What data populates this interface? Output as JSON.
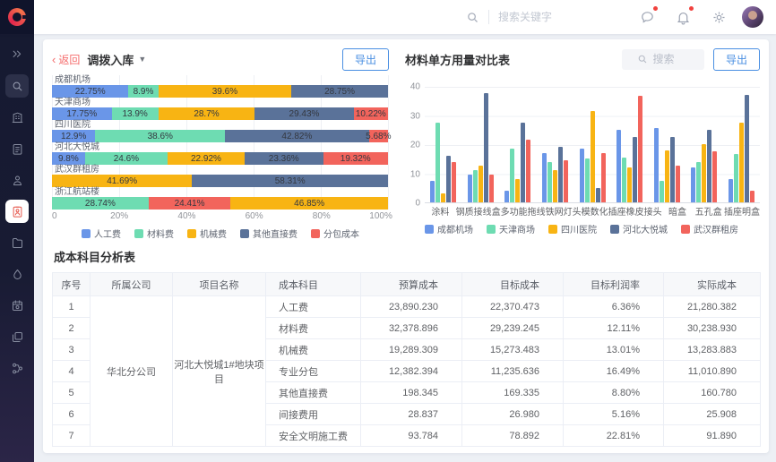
{
  "navbar": {
    "search_placeholder": "搜索关键字"
  },
  "sidebar": {
    "items": [
      {
        "icon": "chevrons-right-icon",
        "state": "plain"
      },
      {
        "icon": "search-icon",
        "state": "muted-box"
      },
      {
        "icon": "building-icon",
        "state": "plain"
      },
      {
        "icon": "clipboard-edit-icon",
        "state": "plain"
      },
      {
        "icon": "user-stamp-icon",
        "state": "plain"
      },
      {
        "icon": "clipboard-user-icon",
        "state": "active"
      },
      {
        "icon": "folder-icon",
        "state": "plain"
      },
      {
        "icon": "droplet-icon",
        "state": "plain"
      },
      {
        "icon": "calendar-gear-icon",
        "state": "plain"
      },
      {
        "icon": "layers-icon",
        "state": "plain"
      },
      {
        "icon": "flow-icon",
        "state": "plain"
      }
    ]
  },
  "left_panel": {
    "back_label": "返回",
    "title": "调拨入库",
    "export_label": "导出"
  },
  "right_panel": {
    "title": "材料单方用量对比表",
    "search_placeholder": "搜索",
    "export_label": "导出"
  },
  "colors": {
    "accent_blue": "#4A8FE2",
    "back_red": "#F56C6C",
    "sidebar_active_red": "#E5574C"
  },
  "chart_data": [
    {
      "type": "bar",
      "variant": "horizontal-stacked-percent",
      "xlim": [
        0,
        100
      ],
      "x_ticks": [
        "0",
        "20%",
        "40%",
        "60%",
        "80%",
        "100%"
      ],
      "legend": [
        {
          "name": "人工费",
          "color": "#6A96E8"
        },
        {
          "name": "材料费",
          "color": "#6EDCB2"
        },
        {
          "name": "机械费",
          "color": "#F8B413"
        },
        {
          "name": "其他直接费",
          "color": "#5A7299"
        },
        {
          "name": "分包成本",
          "color": "#F2645C"
        }
      ],
      "rows": [
        {
          "category": "成都机场",
          "segments": [
            {
              "series": "人工费",
              "value": 22.75
            },
            {
              "series": "材料费",
              "value": 8.9
            },
            {
              "series": "机械费",
              "value": 39.6
            },
            {
              "series": "其他直接费",
              "value": 28.75
            }
          ]
        },
        {
          "category": "天津商场",
          "segments": [
            {
              "series": "人工费",
              "value": 17.75
            },
            {
              "series": "材料费",
              "value": 13.9
            },
            {
              "series": "机械费",
              "value": 28.7
            },
            {
              "series": "其他直接费",
              "value": 29.43
            },
            {
              "series": "分包成本",
              "value": 10.22
            }
          ]
        },
        {
          "category": "四川医院",
          "segments": [
            {
              "series": "人工费",
              "value": 12.9
            },
            {
              "series": "材料费",
              "value": 38.6
            },
            {
              "series": "其他直接费",
              "value": 42.82
            },
            {
              "series": "分包成本",
              "value": 5.68
            }
          ]
        },
        {
          "category": "河北大悦城",
          "segments": [
            {
              "series": "人工费",
              "value": 9.8
            },
            {
              "series": "材料费",
              "value": 24.6
            },
            {
              "series": "机械费",
              "value": 22.92
            },
            {
              "series": "其他直接费",
              "value": 23.36
            },
            {
              "series": "分包成本",
              "value": 19.32
            }
          ]
        },
        {
          "category": "武汉群租房",
          "segments": [
            {
              "series": "机械费",
              "value": 41.69
            },
            {
              "series": "其他直接费",
              "value": 58.31
            }
          ]
        },
        {
          "category": "浙江航站楼",
          "segments": [
            {
              "series": "材料费",
              "value": 28.74
            },
            {
              "series": "分包成本",
              "value": 24.41
            },
            {
              "series": "机械费",
              "value": 46.85
            }
          ]
        }
      ]
    },
    {
      "type": "bar",
      "variant": "vertical-grouped",
      "title": "材料单方用量对比表",
      "ylim": [
        0,
        40
      ],
      "y_ticks": [
        0,
        10,
        20,
        30,
        40
      ],
      "categories": [
        "涂料",
        "钢质接线盒",
        "多功能拖线",
        "铁网灯头",
        "模数化插座",
        "橡皮接头",
        "暗盒",
        "五孔盒",
        "插座明盒"
      ],
      "series": [
        {
          "name": "成都机场",
          "color": "#6A96E8",
          "values": [
            7.5,
            9.5,
            4,
            17,
            18.5,
            25,
            25.5,
            12,
            8
          ]
        },
        {
          "name": "天津商场",
          "color": "#6EDCB2",
          "values": [
            27.5,
            11,
            18.5,
            14,
            15,
            15.5,
            7.5,
            14,
            16.5
          ]
        },
        {
          "name": "四川医院",
          "color": "#F8B413",
          "values": [
            3,
            12.5,
            8,
            11,
            31.5,
            12,
            18,
            20,
            27.5
          ]
        },
        {
          "name": "河北大悦城",
          "color": "#5A7299",
          "values": [
            16,
            37.5,
            27.5,
            19,
            5,
            22.5,
            22.5,
            25,
            37
          ]
        },
        {
          "name": "武汉群租房",
          "color": "#F2645C",
          "values": [
            14,
            9.5,
            21.5,
            14.5,
            17,
            36.5,
            12.5,
            17.5,
            4
          ]
        }
      ]
    }
  ],
  "table": {
    "title": "成本科目分析表",
    "headers": [
      "序号",
      "所属公司",
      "项目名称",
      "成本科目",
      "预算成本",
      "目标成本",
      "目标利润率",
      "实际成本"
    ],
    "company": "华北分公司",
    "project": "河北大悦城1#地块项目",
    "rows": [
      {
        "no": "1",
        "subject": "人工费",
        "budget": "23,890.230",
        "target": "22,370.473",
        "margin": "6.36%",
        "actual": "21,280.382"
      },
      {
        "no": "2",
        "subject": "材料费",
        "budget": "32,378.896",
        "target": "29,239.245",
        "margin": "12.11%",
        "actual": "30,238.930"
      },
      {
        "no": "3",
        "subject": "机械费",
        "budget": "19,289.309",
        "target": "15,273.483",
        "margin": "13.01%",
        "actual": "13,283.883"
      },
      {
        "no": "4",
        "subject": "专业分包",
        "budget": "12,382.394",
        "target": "11,235.636",
        "margin": "16.49%",
        "actual": "11,010.890"
      },
      {
        "no": "5",
        "subject": "其他直接费",
        "budget": "198.345",
        "target": "169.335",
        "margin": "8.80%",
        "actual": "160.780"
      },
      {
        "no": "6",
        "subject": "间接费用",
        "budget": "28.837",
        "target": "26.980",
        "margin": "5.16%",
        "actual": "25.908"
      },
      {
        "no": "7",
        "subject": "安全文明施工费",
        "budget": "93.784",
        "target": "78.892",
        "margin": "22.81%",
        "actual": "91.890"
      }
    ]
  }
}
